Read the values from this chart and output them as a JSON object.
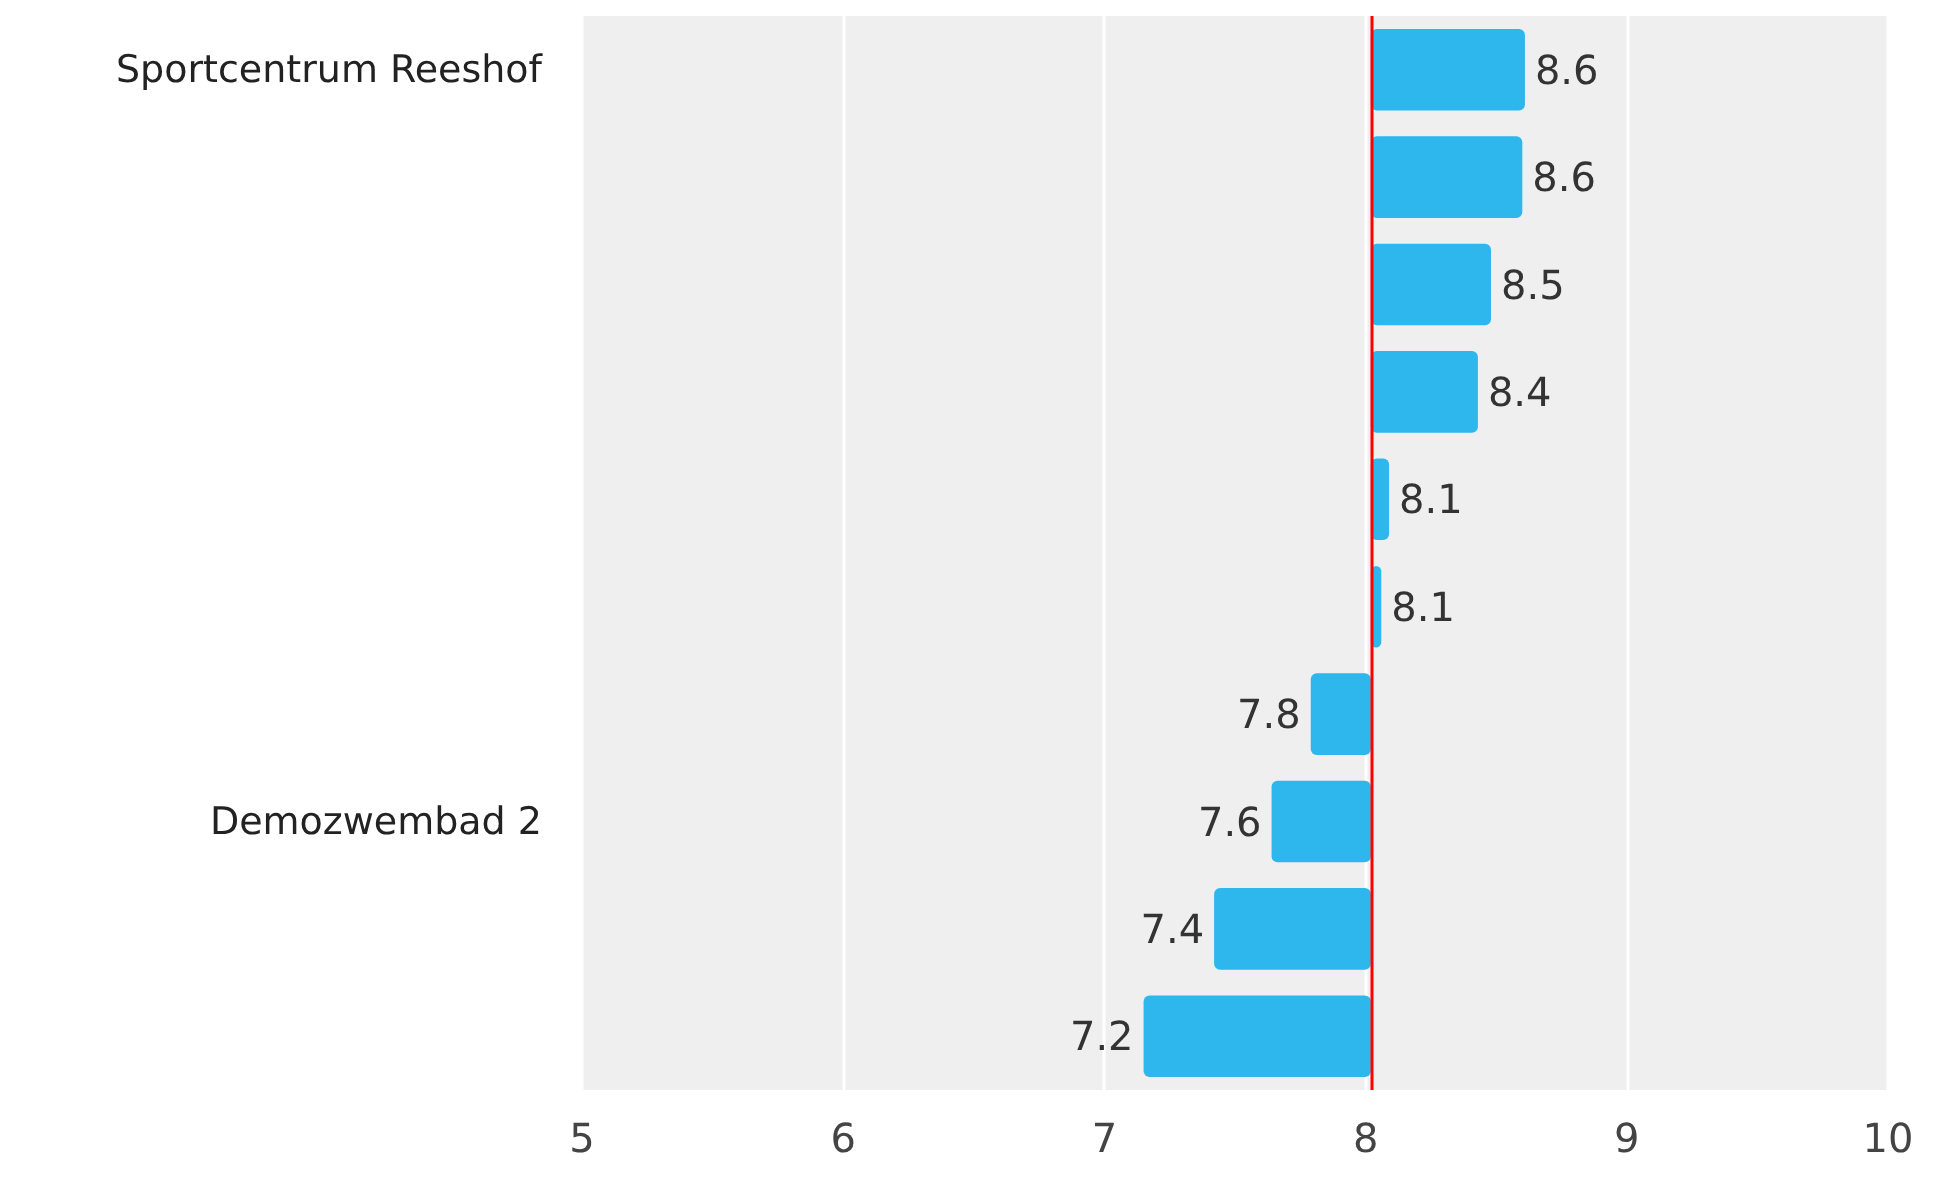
{
  "chart_data": {
    "type": "bar",
    "orientation": "horizontal",
    "categories": [
      "Sportcentrum Reeshof",
      null,
      null,
      null,
      null,
      null,
      null,
      "Demozwembad 2",
      null,
      null
    ],
    "base": [
      8.02,
      8.02,
      8.02,
      8.02,
      8.02,
      8.02,
      8.02,
      8.02,
      8.02,
      8.02
    ],
    "values": [
      0.59,
      0.58,
      0.46,
      0.41,
      0.07,
      0.04,
      -0.23,
      -0.38,
      -0.6,
      -0.87
    ],
    "value_labels": [
      "8.6",
      "8.6",
      "8.5",
      "8.4",
      "8.1",
      "8.1",
      "7.8",
      "7.6",
      "7.4",
      "7.2"
    ],
    "color": "#2db7ec",
    "xlim": [
      5,
      10
    ],
    "xticks": [
      5,
      6,
      7,
      8,
      9,
      10
    ],
    "grid": "x",
    "ref_lines": [
      {
        "axis": "x",
        "value": 8.02,
        "color": "#ff0000"
      }
    ]
  }
}
